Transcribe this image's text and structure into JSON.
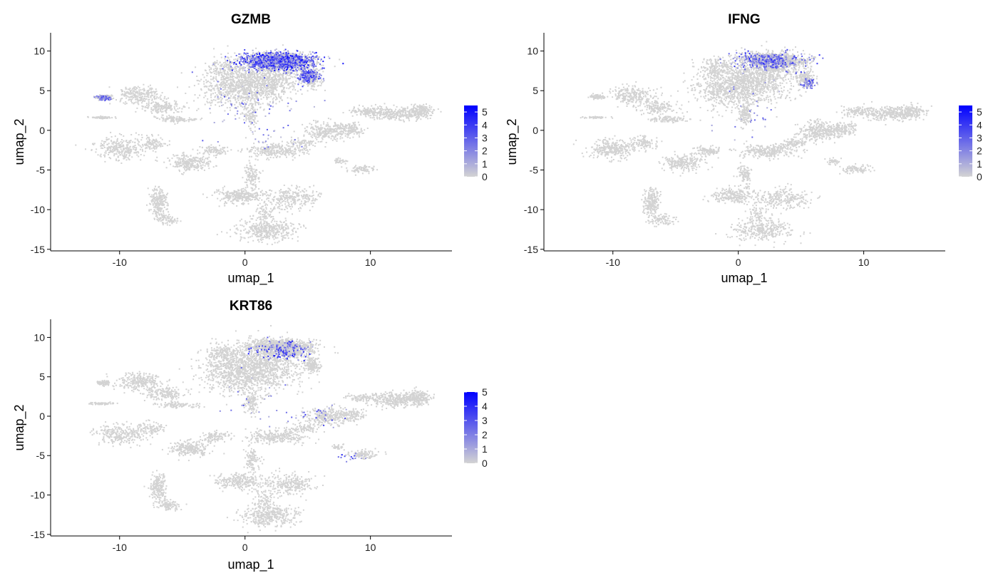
{
  "chart_data": [
    {
      "type": "scatter",
      "title": "GZMB",
      "xlabel": "umap_1",
      "ylabel": "umap_2",
      "xlim": [
        -15.5,
        16.5
      ],
      "ylim": [
        -15.2,
        12.3
      ],
      "xticks": [
        -10,
        0,
        10
      ],
      "yticks": [
        -15,
        -10,
        -5,
        0,
        5,
        10
      ],
      "grid": false,
      "legend": {
        "placement": "right",
        "ticks": [
          0,
          1,
          2,
          3,
          4,
          5
        ],
        "max": 5.5
      },
      "low_color": "#d3d3d3",
      "high_color": "#0000ff",
      "hotspots": [
        {
          "x": 2.5,
          "y": 8.8,
          "sx": 2.4,
          "sy": 0.9,
          "n": 900,
          "max": 5.5
        },
        {
          "x": 5.0,
          "y": 7.0,
          "sx": 0.8,
          "sy": 0.8,
          "n": 180,
          "max": 5.0
        },
        {
          "x": -11.3,
          "y": 4.2,
          "sx": 0.5,
          "sy": 0.25,
          "n": 70,
          "max": 4.5
        },
        {
          "x": 1.0,
          "y": 2.0,
          "sx": 3.5,
          "sy": 4.0,
          "n": 80,
          "max": 3.5
        }
      ]
    },
    {
      "type": "scatter",
      "title": "IFNG",
      "xlabel": "umap_1",
      "ylabel": "umap_2",
      "xlim": [
        -15.5,
        16.5
      ],
      "ylim": [
        -15.2,
        12.3
      ],
      "xticks": [
        -10,
        0,
        10
      ],
      "yticks": [
        -15,
        -10,
        -5,
        0,
        5,
        10
      ],
      "grid": false,
      "legend": {
        "placement": "right",
        "ticks": [
          0,
          1,
          2,
          3,
          4,
          5
        ],
        "max": 5.5
      },
      "low_color": "#d3d3d3",
      "high_color": "#0000ff",
      "hotspots": [
        {
          "x": 2.5,
          "y": 8.8,
          "sx": 2.4,
          "sy": 0.9,
          "n": 380,
          "max": 4.5
        },
        {
          "x": 5.5,
          "y": 6.0,
          "sx": 0.5,
          "sy": 0.5,
          "n": 60,
          "max": 4.0
        },
        {
          "x": 1.0,
          "y": 3.0,
          "sx": 3.0,
          "sy": 3.5,
          "n": 30,
          "max": 3.0
        }
      ]
    },
    {
      "type": "scatter",
      "title": "KRT86",
      "xlabel": "umap_1",
      "ylabel": "umap_2",
      "xlim": [
        -15.5,
        16.5
      ],
      "ylim": [
        -15.2,
        12.3
      ],
      "xticks": [
        -10,
        0,
        10
      ],
      "yticks": [
        -15,
        -10,
        -5,
        0,
        5,
        10
      ],
      "grid": false,
      "legend": {
        "placement": "right",
        "ticks": [
          0,
          1,
          2,
          3,
          4,
          5
        ],
        "max": 5.0
      },
      "low_color": "#d3d3d3",
      "high_color": "#0000ff",
      "hotspots": [
        {
          "x": 3.0,
          "y": 8.5,
          "sx": 2.0,
          "sy": 1.0,
          "n": 150,
          "max": 4.5
        },
        {
          "x": 6.0,
          "y": 0.0,
          "sx": 1.5,
          "sy": 1.5,
          "n": 25,
          "max": 4.0
        },
        {
          "x": 8.5,
          "y": -5.0,
          "sx": 1.0,
          "sy": 0.5,
          "n": 15,
          "max": 4.0
        },
        {
          "x": 0.5,
          "y": 2.0,
          "sx": 3.0,
          "sy": 4.0,
          "n": 25,
          "max": 3.0
        }
      ]
    }
  ]
}
